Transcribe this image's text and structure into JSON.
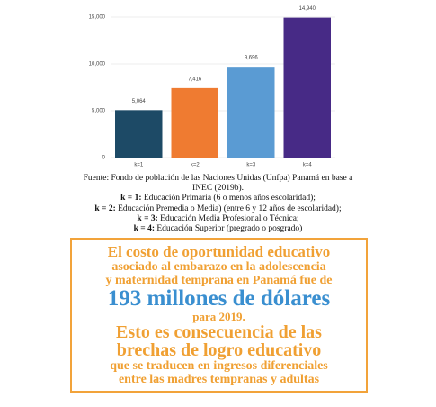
{
  "chart_data": {
    "type": "bar",
    "categories": [
      "k=1",
      "k=2",
      "k=3",
      "k=4"
    ],
    "values": [
      5064,
      7416,
      9696,
      14940
    ],
    "value_labels": [
      "5,064",
      "7,416",
      "9,696",
      "14,940"
    ],
    "colors": [
      "#1d4a66",
      "#ef7b31",
      "#5a9bd3",
      "#472a86"
    ],
    "ylim": [
      0,
      15000
    ],
    "yticks": [
      0,
      {
        "value": 5000,
        "label": "5,000"
      },
      {
        "value": 10000,
        "label": "10,000"
      },
      {
        "value": 15000,
        "label": "15,000"
      }
    ],
    "grid": true
  },
  "source": {
    "text": [
      "Fuente: Fondo de población de las Naciones Unidas (Unfpa) Panamá  en base a",
      "INEC (2019b)."
    ],
    "notes": [
      {
        "key": "k = 1:",
        "text": "Educación Primaria (6 o menos años escolaridad);"
      },
      {
        "key": "k = 2:",
        "text": "Educación Premedia o Media) (entre 6 y 12 años de escolaridad);"
      },
      {
        "key": "k = 3:",
        "text": "Educación Media Profesional o Técnica;"
      },
      {
        "key": "k = 4:",
        "text": "Educación Superior (pregrado o posgrado)"
      }
    ]
  },
  "callout": {
    "lines": [
      {
        "text": "El costo de oportunidad educativo",
        "style": "big"
      },
      {
        "text": "asociado al embarazo en la adolescencia",
        "style": "mid"
      },
      {
        "text": "y maternidad temprana en Panamá fue de",
        "style": "mid"
      },
      {
        "text": "193 millones de dólares",
        "style": "blue"
      },
      {
        "text": "para 2019.",
        "style": "small"
      },
      {
        "text": "Esto es consecuencia de las",
        "style": "huge"
      },
      {
        "text": "brechas de logro educativo",
        "style": "huge"
      },
      {
        "text": "que se traducen en ingresos diferenciales",
        "style": "mid"
      },
      {
        "text": "entre las madres tempranas y adultas",
        "style": "mid"
      }
    ]
  }
}
